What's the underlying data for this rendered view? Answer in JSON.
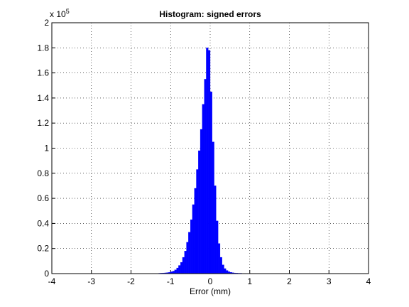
{
  "chart_data": {
    "type": "histogram",
    "title": "Histogram: signed errors",
    "x_label": "Error (mm)",
    "y_multiplier": {
      "base": "x 10",
      "exponent": "5"
    },
    "bins": [
      -1.3,
      -1.25,
      -1.2,
      -1.15,
      -1.1,
      -1.05,
      -1,
      -0.95,
      -0.9,
      -0.85,
      -0.8,
      -0.75,
      -0.7,
      -0.65,
      -0.6,
      -0.55,
      -0.5,
      -0.45,
      -0.4,
      -0.35,
      -0.3,
      -0.25,
      -0.2,
      -0.15,
      -0.1,
      -0.05,
      0,
      0.05,
      0.1,
      0.15,
      0.2,
      0.25,
      0.3,
      0.35,
      0.4,
      0.45,
      0.5,
      0.55,
      0.6,
      0.65,
      0.7,
      0.75,
      0.8,
      0.85,
      0.9,
      0.95,
      1,
      1.05,
      1.1,
      1.15,
      1.2,
      1.25,
      1.3,
      1.35,
      1.4,
      1.45
    ],
    "values": [
      0.003,
      0.004,
      0.005,
      0.006,
      0.008,
      0.01,
      0.015,
      0.02,
      0.03,
      0.045,
      0.065,
      0.09,
      0.13,
      0.18,
      0.25,
      0.33,
      0.43,
      0.55,
      0.68,
      0.83,
      0.98,
      1.15,
      1.35,
      1.55,
      1.8,
      1.78,
      1.45,
      1.05,
      0.7,
      0.42,
      0.24,
      0.13,
      0.07,
      0.04,
      0.025,
      0.015,
      0.01,
      0.007,
      0.005,
      0.004,
      0.003,
      0.003,
      0.002,
      0.002,
      0.002,
      0.0015,
      0.0015,
      0.0015,
      0.001,
      0.001,
      0.001,
      0.001,
      0.001,
      0.001,
      0.001
    ],
    "color": "#0000ff",
    "xlim": [
      -4,
      4
    ],
    "xticks": [
      -4,
      -3,
      -2,
      -1,
      0,
      1,
      2,
      3,
      4
    ],
    "ylim": [
      0,
      2
    ],
    "yticks": [
      0,
      0.2,
      0.4,
      0.6,
      0.8,
      1,
      1.2,
      1.4,
      1.6,
      1.8,
      2
    ],
    "grid": true
  }
}
